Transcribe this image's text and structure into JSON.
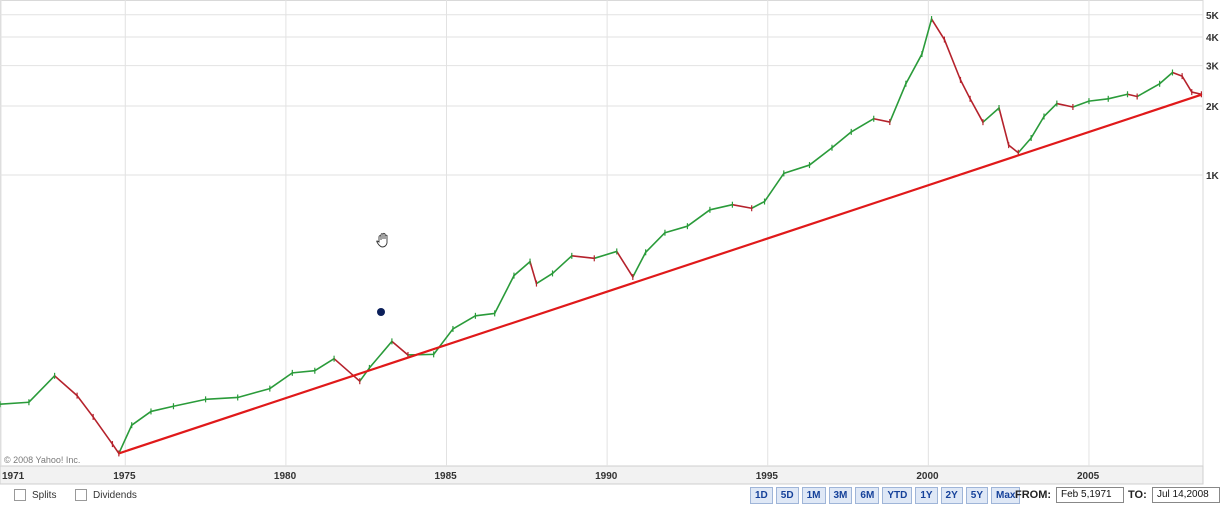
{
  "chart_data": {
    "type": "line",
    "scale": "log",
    "xlabels": [
      "1971",
      "1975",
      "1980",
      "1985",
      "1990",
      "1995",
      "2000",
      "2005"
    ],
    "ylabels": [
      "5K",
      "4K",
      "3K",
      "2K",
      "1K"
    ],
    "ylabel_values": [
      5000,
      4000,
      3000,
      2000,
      1000
    ],
    "grid": true,
    "copyright": "© 2008 Yahoo! Inc.",
    "series": [
      {
        "color": "#2a9b3a",
        "x": [
          1971.1,
          1972.0,
          1972.8,
          1973.5,
          1974.0,
          1974.6,
          1974.8,
          1975.2,
          1975.8,
          1976.5,
          1977.5,
          1978.5,
          1979.5,
          1980.2,
          1980.9,
          1981.5,
          1982.3,
          1982.6,
          1983.3,
          1983.8,
          1984.6,
          1985.2,
          1985.9,
          1986.5,
          1987.1,
          1987.6,
          1987.8,
          1988.3,
          1988.9,
          1989.6,
          1990.3,
          1990.8,
          1991.2,
          1991.8,
          1992.5,
          1993.2,
          1993.9,
          1994.5,
          1994.9,
          1995.5,
          1996.3,
          1997.0,
          1997.6,
          1998.3,
          1998.8,
          1999.3,
          1999.8,
          2000.1,
          2000.5,
          2001.0,
          2001.3,
          2001.7,
          2002.2,
          2002.5,
          2002.8,
          2003.2,
          2003.6,
          2004.0,
          2004.5,
          2005.0,
          2005.6,
          2006.2,
          2006.5,
          2007.2,
          2007.6,
          2007.9,
          2008.2,
          2008.5
        ],
        "y": [
          100,
          102,
          133,
          109,
          88,
          67,
          61,
          81,
          93,
          98,
          105,
          107,
          117,
          137,
          140,
          158,
          126,
          144,
          188,
          164,
          165,
          213,
          243,
          249,
          364,
          419,
          336,
          372,
          444,
          433,
          464,
          359,
          460,
          560,
          598,
          705,
          742,
          716,
          766,
          1016,
          1105,
          1315,
          1542,
          1760,
          1702,
          2502,
          3370,
          4790,
          3900,
          2600,
          2150,
          1700,
          1960,
          1350,
          1250,
          1450,
          1800,
          2050,
          1980,
          2100,
          2150,
          2250,
          2200,
          2500,
          2800,
          2700,
          2300,
          2250
        ]
      }
    ],
    "trendline": {
      "color": "#e0191a",
      "x": [
        1974.8,
        2008.5
      ],
      "y": [
        61,
        2240
      ]
    }
  },
  "controls": {
    "splits_label": "Splits",
    "dividends_label": "Dividends",
    "ranges": [
      "1D",
      "5D",
      "1M",
      "3M",
      "6M",
      "YTD",
      "1Y",
      "2Y",
      "5Y",
      "Max"
    ],
    "from_label": "FROM:",
    "from_date": "Feb 5,1971",
    "to_label": "TO:",
    "to_date": "Jul 14,2008"
  }
}
